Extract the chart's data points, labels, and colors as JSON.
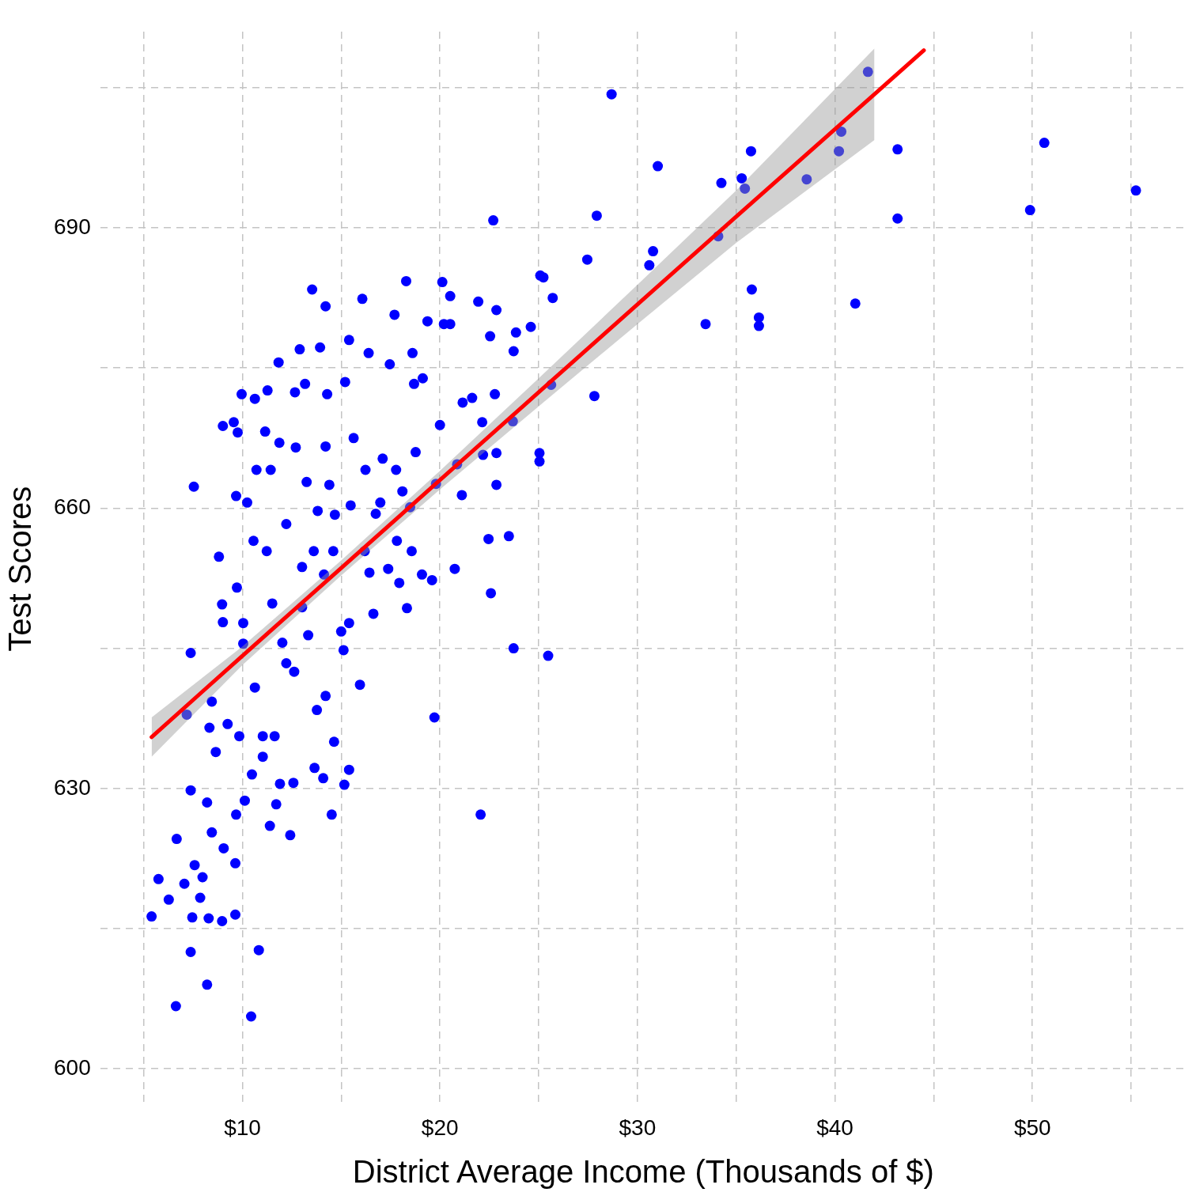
{
  "chart_data": {
    "type": "scatter",
    "xlabel": "District Average Income (Thousands of $)",
    "ylabel": "Test Scores",
    "xlim": [
      2.8,
      57.8
    ],
    "ylim": [
      596,
      711
    ],
    "xticks": [
      {
        "value": 5,
        "label": null
      },
      {
        "value": 10,
        "label": "$10"
      },
      {
        "value": 15,
        "label": null
      },
      {
        "value": 20,
        "label": "$20"
      },
      {
        "value": 25,
        "label": null
      },
      {
        "value": 30,
        "label": "$30"
      },
      {
        "value": 35,
        "label": null
      },
      {
        "value": 40,
        "label": "$40"
      },
      {
        "value": 45,
        "label": null
      },
      {
        "value": 50,
        "label": "$50"
      },
      {
        "value": 55,
        "label": null
      }
    ],
    "yticks": [
      600,
      {
        "value": 615,
        "label": null
      },
      630,
      {
        "value": 645,
        "label": null
      },
      660,
      {
        "value": 675,
        "label": null
      },
      690,
      {
        "value": 705,
        "label": null
      }
    ],
    "grid": true,
    "legend": false,
    "marker": "circle",
    "series": [
      {
        "color": "#0000ff",
        "x": [
          5.4,
          5.75,
          6.27,
          6.63,
          6.67,
          7.06,
          7.18,
          7.38,
          7.38,
          7.46,
          7.38,
          7.54,
          7.58,
          7.86,
          7.98,
          8.21,
          8.29,
          8.21,
          8.33,
          8.45,
          8.81,
          8.97,
          9.01,
          8.97,
          9.01,
          9.05,
          9.25,
          9.56,
          9.64,
          9.68,
          9.72,
          9.64,
          9.68,
          9.76,
          9.96,
          10.04,
          10.12,
          10.24,
          10.44,
          10.48,
          10.56,
          10.63,
          10.71,
          10.83,
          11.03,
          11.15,
          11.23,
          11.27,
          11.39,
          11.51,
          11.71,
          11.83,
          11.87,
          11.9,
          12.02,
          12.22,
          12.42,
          12.58,
          12.66,
          12.7,
          12.9,
          13.02,
          13.17,
          13.25,
          13.33,
          13.53,
          13.65,
          13.77,
          13.93,
          14.09,
          14.13,
          14.21,
          14.21,
          14.29,
          14.4,
          14.52,
          14.64,
          14.68,
          15.12,
          15.2,
          15.16,
          15.4,
          15.4,
          15.48,
          15.63,
          15.95,
          16.07,
          16.23,
          16.39,
          16.43,
          16.63,
          16.75,
          17.1,
          17.38,
          17.46,
          17.7,
          17.82,
          17.94,
          18.1,
          18.29,
          18.33,
          18.49,
          18.61,
          18.69,
          18.77,
          19.09,
          19.13,
          19.37,
          19.6,
          19.72,
          19.8,
          20.0,
          20.12,
          20.2,
          20.52,
          20.52,
          20.75,
          20.87,
          21.11,
          21.15,
          21.63,
          21.94,
          22.06,
          22.14,
          22.18,
          22.46,
          22.54,
          22.58,
          22.7,
          22.78,
          22.86,
          22.86,
          22.86,
          23.49,
          23.69,
          23.73,
          23.73,
          23.85,
          24.6,
          25.04,
          25.04,
          25.08,
          25.24,
          25.48,
          25.63,
          25.71,
          27.46,
          27.82,
          27.94,
          28.69,
          30.6,
          30.79,
          31.03,
          33.45,
          34.09,
          34.25,
          35.28,
          35.44,
          35.75,
          35.79,
          36.15,
          36.15,
          38.57,
          40.2,
          40.32,
          41.03,
          41.67,
          43.17,
          43.17,
          49.88,
          50.6,
          55.24,
          10.63,
          10.04,
          11.03,
          11.63,
          12.62,
          13.02,
          13.61,
          13.81,
          14.6,
          15.0,
          14.21,
          15.4,
          16.19,
          16.98,
          17.78,
          18.57,
          11.43,
          12.22,
          9.84,
          8.65,
          8.45
        ],
        "values": [
          616.3,
          620.3,
          618.1,
          606.7,
          624.6,
          619.8,
          637.9,
          644.5,
          629.8,
          616.2,
          612.5,
          662.3,
          621.8,
          618.3,
          620.5,
          609.0,
          616.1,
          628.5,
          636.5,
          639.3,
          654.8,
          649.7,
          647.8,
          615.8,
          668.8,
          623.6,
          636.9,
          669.2,
          616.5,
          661.3,
          651.5,
          622.0,
          627.2,
          668.1,
          672.2,
          645.5,
          628.7,
          660.6,
          605.6,
          631.5,
          656.5,
          671.7,
          664.1,
          612.7,
          635.6,
          668.2,
          655.4,
          672.6,
          626.0,
          649.8,
          628.3,
          675.6,
          667.0,
          630.5,
          645.6,
          658.3,
          625.0,
          630.6,
          672.4,
          666.5,
          677.0,
          653.7,
          673.3,
          662.8,
          646.4,
          683.4,
          632.2,
          638.4,
          677.2,
          631.1,
          652.9,
          681.6,
          666.6,
          672.2,
          662.5,
          627.2,
          635.0,
          659.3,
          644.8,
          673.5,
          630.4,
          678.0,
          632.0,
          660.3,
          667.5,
          641.1,
          682.4,
          664.1,
          676.6,
          653.1,
          648.7,
          659.4,
          665.3,
          653.5,
          675.4,
          680.7,
          656.5,
          652.0,
          661.8,
          684.3,
          649.3,
          660.1,
          676.6,
          673.3,
          666.0,
          652.9,
          673.9,
          680.0,
          652.3,
          637.6,
          662.6,
          668.9,
          684.2,
          679.7,
          682.7,
          679.7,
          653.5,
          664.7,
          661.4,
          671.3,
          671.8,
          682.1,
          627.2,
          669.2,
          665.7,
          656.7,
          678.4,
          650.9,
          690.8,
          672.2,
          681.2,
          665.9,
          662.5,
          657.0,
          669.3,
          645.0,
          676.8,
          678.8,
          679.4,
          665.9,
          665.0,
          684.9,
          684.7,
          644.2,
          673.2,
          682.5,
          686.6,
          672.0,
          691.3,
          704.3,
          686.0,
          687.5,
          696.6,
          679.7,
          689.1,
          694.8,
          695.3,
          694.2,
          698.2,
          683.4,
          680.4,
          679.5,
          695.2,
          698.2,
          700.3,
          681.9,
          706.7,
          698.4,
          691.0,
          691.9,
          699.1,
          694.0,
          640.8,
          647.7,
          633.4,
          635.6,
          642.5,
          649.4,
          655.4,
          659.7,
          655.4,
          646.8,
          639.9,
          647.7,
          655.4,
          660.6,
          664.1,
          655.4,
          664.1,
          643.4,
          635.6,
          633.9,
          625.3
        ]
      },
      {
        "type": "line",
        "marker": "none",
        "color": "#ff0000",
        "x": [
          5.4,
          10,
          15,
          20,
          25,
          30,
          35,
          42,
          44.5
        ],
        "values": [
          635.5,
          644.2,
          653.6,
          663.0,
          672.4,
          681.8,
          691.2,
          704.3,
          709.0
        ],
        "lower": [
          633.4,
          643.2,
          652.8,
          662.0,
          670.9,
          679.7,
          688.4,
          699.4,
          null
        ],
        "upper": [
          637.6,
          645.2,
          654.4,
          664.0,
          673.9,
          683.9,
          694.0,
          709.2,
          null
        ]
      }
    ]
  }
}
